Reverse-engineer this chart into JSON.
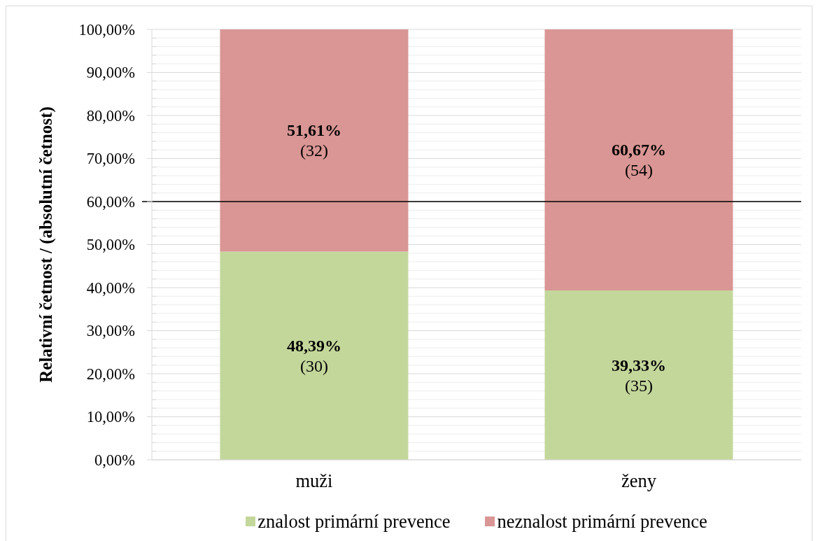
{
  "chart_data": {
    "type": "bar",
    "stacked": true,
    "categories": [
      "muži",
      "ženy"
    ],
    "series": [
      {
        "name": "znalost primární prevence",
        "color": "#c4d79b",
        "values": [
          48.39,
          39.33
        ],
        "value_labels": [
          "48,39%\n(30)",
          "39,33%\n(35)"
        ]
      },
      {
        "name": "neznalost primární prevence",
        "color": "#d99694",
        "values": [
          51.61,
          60.67
        ],
        "value_labels": [
          "51,61%\n(32)",
          "60,67%\n(54)"
        ]
      }
    ],
    "ylabel": "Relativní četnost / (absolutní četnost)",
    "ylim": [
      0,
      100
    ],
    "yticks": [
      {
        "value": 0,
        "label": "0,00%"
      },
      {
        "value": 2,
        "label": null
      },
      {
        "value": 4,
        "label": null
      },
      {
        "value": 6,
        "label": null
      },
      {
        "value": 8,
        "label": null
      },
      {
        "value": 10,
        "label": "10,00%"
      },
      {
        "value": 12,
        "label": null
      },
      {
        "value": 14,
        "label": null
      },
      {
        "value": 16,
        "label": null
      },
      {
        "value": 18,
        "label": null
      },
      {
        "value": 20,
        "label": "20,00%"
      },
      {
        "value": 22,
        "label": null
      },
      {
        "value": 24,
        "label": null
      },
      {
        "value": 26,
        "label": null
      },
      {
        "value": 28,
        "label": null
      },
      {
        "value": 30,
        "label": "30,00%"
      },
      {
        "value": 32,
        "label": null
      },
      {
        "value": 34,
        "label": null
      },
      {
        "value": 36,
        "label": null
      },
      {
        "value": 38,
        "label": null
      },
      {
        "value": 40,
        "label": "40,00%"
      },
      {
        "value": 42,
        "label": null
      },
      {
        "value": 44,
        "label": null
      },
      {
        "value": 46,
        "label": null
      },
      {
        "value": 48,
        "label": null
      },
      {
        "value": 50,
        "label": "50,00%"
      },
      {
        "value": 52,
        "label": null
      },
      {
        "value": 54,
        "label": null
      },
      {
        "value": 56,
        "label": null
      },
      {
        "value": 58,
        "label": null
      },
      {
        "value": 60,
        "label": "60,00%"
      },
      {
        "value": 62,
        "label": null
      },
      {
        "value": 64,
        "label": null
      },
      {
        "value": 66,
        "label": null
      },
      {
        "value": 68,
        "label": null
      },
      {
        "value": 70,
        "label": "70,00%"
      },
      {
        "value": 72,
        "label": null
      },
      {
        "value": 74,
        "label": null
      },
      {
        "value": 76,
        "label": null
      },
      {
        "value": 78,
        "label": null
      },
      {
        "value": 80,
        "label": "80,00%"
      },
      {
        "value": 82,
        "label": null
      },
      {
        "value": 84,
        "label": null
      },
      {
        "value": 86,
        "label": null
      },
      {
        "value": 88,
        "label": null
      },
      {
        "value": 90,
        "label": "90,00%"
      },
      {
        "value": 92,
        "label": null
      },
      {
        "value": 94,
        "label": null
      },
      {
        "value": 96,
        "label": null
      },
      {
        "value": 98,
        "label": null
      },
      {
        "value": 100,
        "label": "100,00%"
      }
    ],
    "ref_lines": [
      {
        "axis": "y",
        "value": 60,
        "color": "#000000"
      }
    ],
    "grid": "y",
    "legend": "bottom"
  }
}
